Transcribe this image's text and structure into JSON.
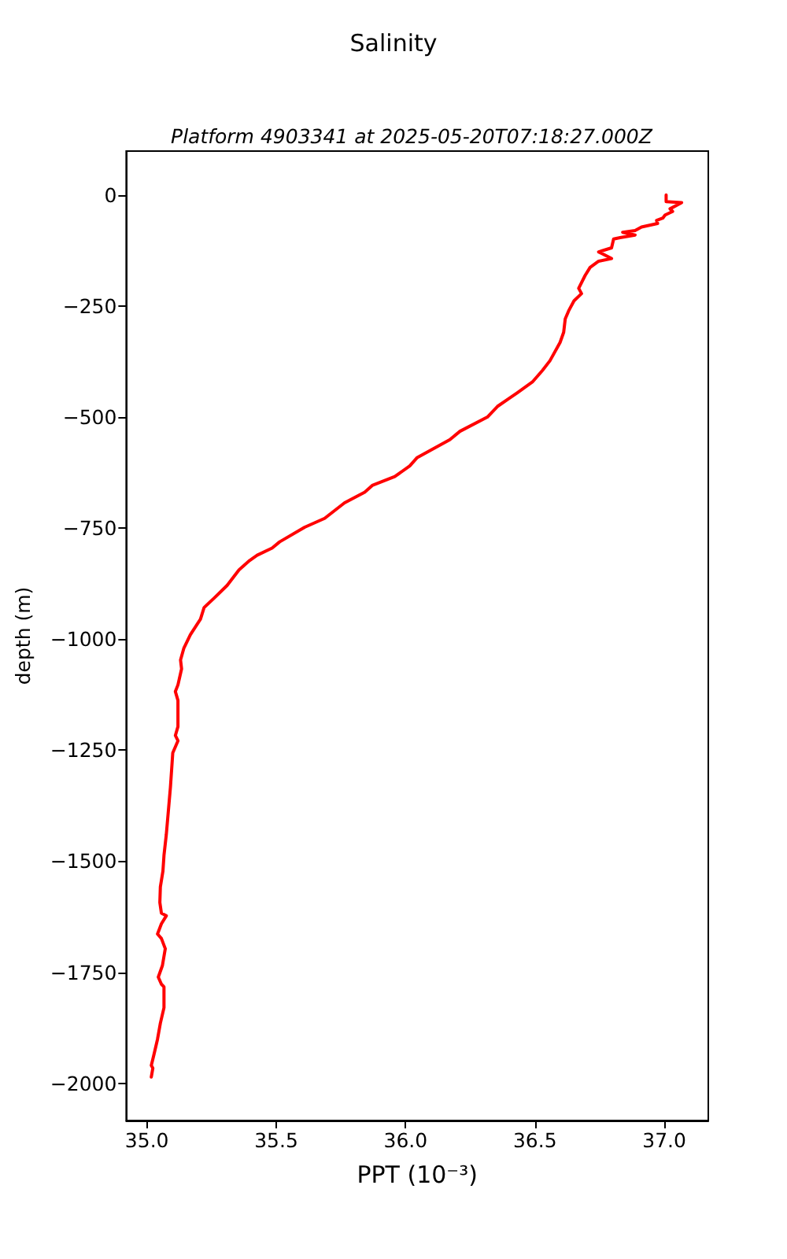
{
  "chart_data": {
    "type": "line",
    "title": "Salinity",
    "subtitle": "Platform 4903341 at 2025-05-20T07:18:27.000Z",
    "xlabel": "PPT (10⁻³)",
    "ylabel": "depth (m)",
    "xlim": [
      34.92,
      37.17
    ],
    "ylim": [
      -2084,
      99
    ],
    "xticks": [
      {
        "value": 35,
        "label": "35.0"
      },
      35.5,
      {
        "value": 36,
        "label": "36.0"
      },
      36.5,
      {
        "value": 37,
        "label": "37.0"
      }
    ],
    "yticks": [
      0,
      -250,
      -500,
      -750,
      -1000,
      -1250,
      -1500,
      -1750,
      -2000
    ],
    "marker": "none",
    "line_style": "solid",
    "series": [
      {
        "color": "#ff0000",
        "x": [
          37.007,
          37.007,
          37.067,
          37.022,
          37.032,
          37.003,
          36.994,
          36.97,
          36.974,
          36.912,
          36.887,
          36.839,
          36.887,
          36.829,
          36.804,
          36.796,
          36.746,
          36.796,
          36.746,
          36.713,
          36.694,
          36.669,
          36.68,
          36.651,
          36.63,
          36.617,
          36.611,
          36.597,
          36.558,
          36.529,
          36.49,
          36.432,
          36.355,
          36.316,
          36.21,
          36.171,
          36.045,
          36.016,
          35.958,
          35.871,
          35.842,
          35.764,
          35.687,
          35.61,
          35.513,
          35.484,
          35.426,
          35.397,
          35.356,
          35.31,
          35.259,
          35.221,
          35.207,
          35.168,
          35.143,
          35.13,
          35.134,
          35.12,
          35.11,
          35.12,
          35.12,
          35.11,
          35.12,
          35.1,
          35.091,
          35.075,
          35.066,
          35.062,
          35.052,
          35.05,
          35.056,
          35.075,
          35.056,
          35.041,
          35.056,
          35.071,
          35.06,
          35.044,
          35.056,
          35.066,
          35.066,
          35.052,
          35.041,
          35.027,
          35.017,
          35.023,
          35.017
        ],
        "values": [
          0,
          -15,
          -17,
          -31,
          -37,
          -45,
          -52,
          -57,
          -64,
          -72,
          -80,
          -84,
          -90,
          -96,
          -99,
          -119,
          -128,
          -143,
          -149,
          -163,
          -181,
          -210,
          -222,
          -238,
          -261,
          -279,
          -309,
          -332,
          -373,
          -395,
          -421,
          -445,
          -476,
          -500,
          -532,
          -551,
          -591,
          -610,
          -634,
          -654,
          -669,
          -693,
          -728,
          -748,
          -781,
          -795,
          -811,
          -823,
          -844,
          -879,
          -908,
          -929,
          -955,
          -990,
          -1020,
          -1047,
          -1067,
          -1103,
          -1118,
          -1138,
          -1197,
          -1217,
          -1229,
          -1256,
          -1333,
          -1440,
          -1487,
          -1522,
          -1558,
          -1593,
          -1617,
          -1623,
          -1641,
          -1664,
          -1674,
          -1697,
          -1735,
          -1761,
          -1777,
          -1783,
          -1830,
          -1865,
          -1901,
          -1936,
          -1960,
          -1966,
          -1986
        ]
      }
    ]
  }
}
